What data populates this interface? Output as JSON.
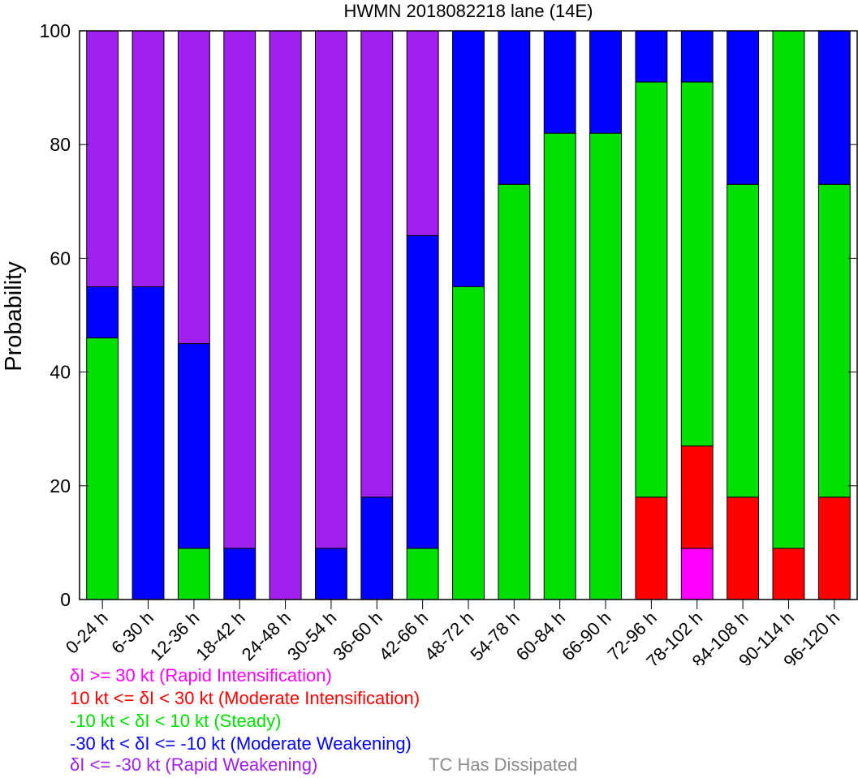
{
  "chart_data": {
    "type": "bar",
    "stacked": true,
    "title": "HWMN 2018082218 lane (14E)",
    "xlabel": "",
    "ylabel": "Probability",
    "ylim": [
      0,
      100
    ],
    "yticks": [
      "0",
      "20",
      "40",
      "60",
      "80",
      "100"
    ],
    "grid": false,
    "categories": [
      "0-24 h",
      "6-30 h",
      "12-36 h",
      "18-42 h",
      "24-48 h",
      "30-54 h",
      "36-60 h",
      "42-66 h",
      "48-72 h",
      "54-78 h",
      "60-84 h",
      "66-90 h",
      "72-96 h",
      "78-102 h",
      "84-108 h",
      "90-114 h",
      "96-120 h"
    ],
    "series": [
      {
        "key": "ri",
        "color": "#ff00ff",
        "values": [
          0,
          0,
          0,
          0,
          0,
          0,
          0,
          0,
          0,
          0,
          0,
          0,
          0,
          9,
          0,
          0,
          0
        ]
      },
      {
        "key": "mi",
        "color": "#ff0000",
        "values": [
          0,
          0,
          0,
          0,
          0,
          0,
          0,
          0,
          0,
          0,
          0,
          0,
          18,
          18,
          18,
          9,
          18
        ]
      },
      {
        "key": "steady",
        "color": "#00e000",
        "values": [
          46,
          0,
          9,
          0,
          0,
          0,
          0,
          9,
          55,
          73,
          82,
          82,
          73,
          64,
          55,
          91,
          55
        ]
      },
      {
        "key": "mw",
        "color": "#0000ff",
        "values": [
          9,
          55,
          36,
          9,
          0,
          9,
          18,
          55,
          45,
          27,
          18,
          18,
          9,
          9,
          27,
          0,
          27
        ]
      },
      {
        "key": "rw",
        "color": "#a020f0",
        "values": [
          45,
          45,
          55,
          91,
          100,
          91,
          82,
          36,
          0,
          0,
          0,
          0,
          0,
          0,
          0,
          0,
          0
        ]
      }
    ],
    "legend": [
      {
        "text": "δI >= 30 kt (Rapid Intensification)",
        "color": "#ff00ff"
      },
      {
        "text": "10 kt <= δI < 30 kt (Moderate Intensification)",
        "color": "#ff0000"
      },
      {
        "text": "-10 kt < δI < 10 kt (Steady)",
        "color": "#00e000"
      },
      {
        "text": "-30 kt < δI <= -10 kt (Moderate Weakening)",
        "color": "#0000ff"
      },
      {
        "text": "δI <= -30 kt (Rapid Weakening)",
        "color": "#a020f0"
      }
    ],
    "legend_placement": "bottom-left",
    "note": {
      "text": "TC Has Dissipated",
      "color": "#8c8c8c"
    }
  }
}
